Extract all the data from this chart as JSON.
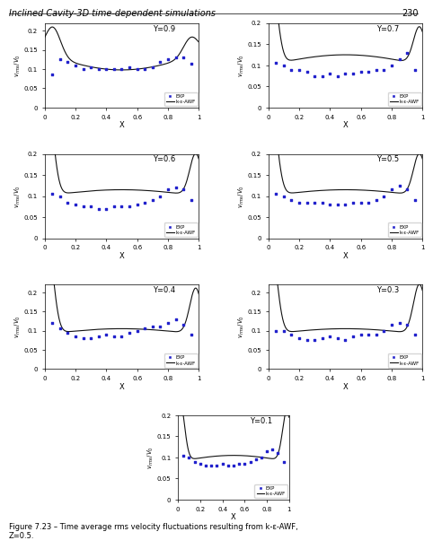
{
  "title_header": "Inclined Cavity-3D time-dependent simulations",
  "page_number": "230",
  "figure_caption": "Figure 7.23 – Time average rms velocity fluctuations resulting from k-ε-AWF,\nZ=0.5.",
  "ylabel": "v$_{rms}$/V$_0$",
  "xlabel": "X",
  "panels": [
    {
      "Y_label": "Y=0.9",
      "ylim": [
        0,
        0.22
      ],
      "yticks": [
        0,
        0.05,
        0.1,
        0.15,
        0.2
      ]
    },
    {
      "Y_label": "Y=0.7",
      "ylim": [
        0,
        0.2
      ],
      "yticks": [
        0,
        0.05,
        0.1,
        0.15,
        0.2
      ]
    },
    {
      "Y_label": "Y=0.6",
      "ylim": [
        0,
        0.2
      ],
      "yticks": [
        0,
        0.05,
        0.1,
        0.15,
        0.2
      ]
    },
    {
      "Y_label": "Y=0.5",
      "ylim": [
        0,
        0.2
      ],
      "yticks": [
        0,
        0.05,
        0.1,
        0.15,
        0.2
      ]
    },
    {
      "Y_label": "Y=0.4",
      "ylim": [
        0,
        0.22
      ],
      "yticks": [
        0,
        0.05,
        0.1,
        0.15,
        0.2
      ]
    },
    {
      "Y_label": "Y=0.3",
      "ylim": [
        0,
        0.22
      ],
      "yticks": [
        0,
        0.05,
        0.1,
        0.15,
        0.2
      ]
    },
    {
      "Y_label": "Y=0.1",
      "ylim": [
        0,
        0.2
      ],
      "yticks": [
        0,
        0.05,
        0.1,
        0.15,
        0.2
      ]
    }
  ],
  "exp_color": "#2222cc",
  "line_color": "#111111",
  "bg_color": "#ffffff"
}
